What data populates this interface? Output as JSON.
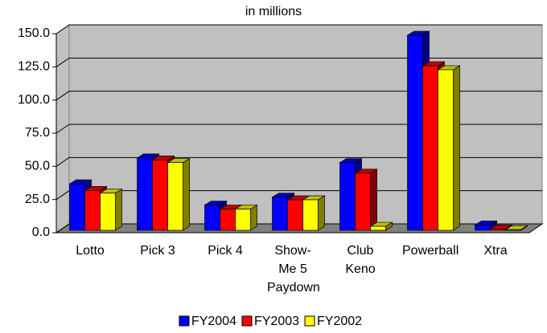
{
  "chart_data": {
    "type": "bar3d",
    "title": "in millions",
    "categories": [
      "Lotto",
      "Pick 3",
      "Pick 4",
      "Show-Me 5 Paydown",
      "Club Keno",
      "Powerball",
      "Xtra"
    ],
    "series": [
      {
        "name": "FY2004",
        "color": "#0000ff",
        "values": [
          35,
          54.5,
          19,
          25,
          51,
          147,
          4
        ]
      },
      {
        "name": "FY2003",
        "color": "#ff0000",
        "values": [
          30,
          53,
          16,
          23,
          43,
          124,
          1
        ]
      },
      {
        "name": "FY2002",
        "color": "#ffff00",
        "values": [
          28,
          51,
          16,
          23,
          3,
          121,
          0.5
        ]
      }
    ],
    "ylim": [
      0,
      150
    ],
    "yticks": [
      {
        "value": 0,
        "label": "0.0"
      },
      {
        "value": 25,
        "label": "25.0"
      },
      {
        "value": 50,
        "label": "50.0"
      },
      {
        "value": 75,
        "label": "75.0"
      },
      {
        "value": 100,
        "label": "100.0"
      },
      {
        "value": 125,
        "label": "125.0"
      },
      {
        "value": 150,
        "label": "150.0"
      }
    ],
    "grid": true,
    "legend": "bottom"
  }
}
